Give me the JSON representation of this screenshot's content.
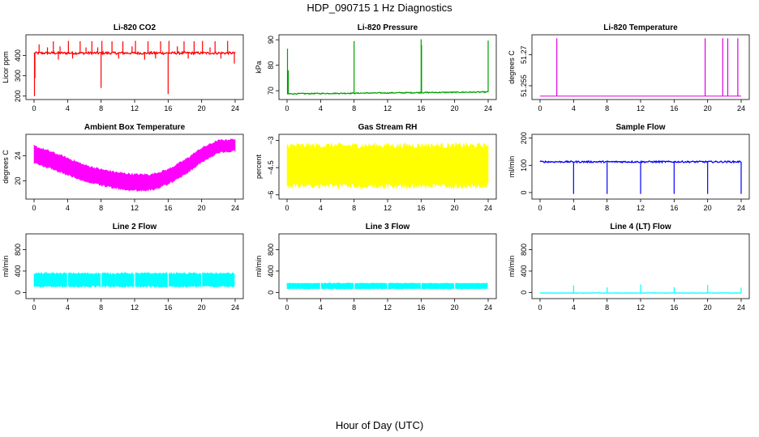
{
  "page": {
    "title": "HDP_090715  1 Hz Diagnostics",
    "x_caption": "Hour of Day (UTC)"
  },
  "chart_data": [
    {
      "type": "line",
      "title": "Li-820 CO2",
      "xlabel": "",
      "ylabel": "Licor ppm",
      "color": "#ff0000",
      "xlim": [
        0,
        24
      ],
      "ylim": [
        195,
        490
      ],
      "x_ticks": [
        0,
        4,
        8,
        12,
        16,
        20,
        24
      ],
      "y_ticks": [
        200,
        300,
        400
      ],
      "series": [
        {
          "baseline": 412,
          "noise": 6,
          "spikes": [
            {
              "x": 0.05,
              "y": 200
            },
            {
              "x": 0.1,
              "y": 290
            },
            {
              "x": 0.6,
              "y": 455
            },
            {
              "x": 1.6,
              "y": 440
            },
            {
              "x": 2.3,
              "y": 470
            },
            {
              "x": 2.9,
              "y": 380
            },
            {
              "x": 3.1,
              "y": 445
            },
            {
              "x": 4.1,
              "y": 472
            },
            {
              "x": 4.6,
              "y": 385
            },
            {
              "x": 5.5,
              "y": 470
            },
            {
              "x": 6.2,
              "y": 440
            },
            {
              "x": 6.9,
              "y": 470
            },
            {
              "x": 7.6,
              "y": 440
            },
            {
              "x": 8.0,
              "y": 240
            },
            {
              "x": 8.1,
              "y": 472
            },
            {
              "x": 9.3,
              "y": 470
            },
            {
              "x": 10.1,
              "y": 385
            },
            {
              "x": 10.6,
              "y": 470
            },
            {
              "x": 11.7,
              "y": 445
            },
            {
              "x": 12.1,
              "y": 472
            },
            {
              "x": 13.2,
              "y": 380
            },
            {
              "x": 13.6,
              "y": 470
            },
            {
              "x": 14.5,
              "y": 385
            },
            {
              "x": 15.1,
              "y": 470
            },
            {
              "x": 16.0,
              "y": 210
            },
            {
              "x": 16.1,
              "y": 472
            },
            {
              "x": 17.1,
              "y": 445
            },
            {
              "x": 17.9,
              "y": 470
            },
            {
              "x": 18.4,
              "y": 385
            },
            {
              "x": 19.1,
              "y": 470
            },
            {
              "x": 20.1,
              "y": 472
            },
            {
              "x": 21.0,
              "y": 440
            },
            {
              "x": 21.6,
              "y": 470
            },
            {
              "x": 22.3,
              "y": 385
            },
            {
              "x": 23.1,
              "y": 472
            },
            {
              "x": 23.9,
              "y": 360
            }
          ]
        }
      ]
    },
    {
      "type": "line",
      "title": "Li-820 Pressure",
      "xlabel": "",
      "ylabel": "kPa",
      "color": "#00a000",
      "xlim": [
        0,
        24
      ],
      "ylim": [
        67.5,
        91
      ],
      "x_ticks": [
        0,
        4,
        8,
        12,
        16,
        20,
        24
      ],
      "y_ticks": [
        70,
        80,
        90
      ],
      "series": [
        {
          "baseline_start": 68.8,
          "baseline_end": 69.5,
          "noise": 0.2,
          "spikes": [
            {
              "x": 0.05,
              "y": 86.5
            },
            {
              "x": 0.15,
              "y": 78
            },
            {
              "x": 8.0,
              "y": 89.5
            },
            {
              "x": 16.0,
              "y": 90.2
            },
            {
              "x": 16.05,
              "y": 88
            },
            {
              "x": 24.0,
              "y": 89.7
            }
          ]
        }
      ]
    },
    {
      "type": "line",
      "title": "Li-820 Temperature",
      "xlabel": "",
      "ylabel": "degrees C",
      "color": "#e000e0",
      "xlim": [
        0,
        24
      ],
      "ylim": [
        51.2495,
        51.2785
      ],
      "x_ticks": [
        0,
        4,
        8,
        12,
        16,
        20,
        24
      ],
      "y_ticks": [
        51.255,
        51.27
      ],
      "series": [
        {
          "baseline": 51.25,
          "noise": 0,
          "spikes": [
            {
              "x": 2.0,
              "y": 51.278
            },
            {
              "x": 19.7,
              "y": 51.278
            },
            {
              "x": 21.8,
              "y": 51.278
            },
            {
              "x": 22.4,
              "y": 51.278
            },
            {
              "x": 23.6,
              "y": 51.278
            }
          ]
        }
      ]
    },
    {
      "type": "area",
      "title": "Ambient Box Temperature",
      "xlabel": "",
      "ylabel": "degrees C",
      "color": "#ff00ff",
      "xlim": [
        0,
        24
      ],
      "ylim": [
        17.5,
        27
      ],
      "x_ticks": [
        0,
        4,
        8,
        12,
        16,
        20,
        24
      ],
      "y_ticks": [
        20,
        24
      ],
      "series": [
        {
          "x": [
            0,
            2,
            4,
            6,
            8,
            10,
            12,
            14,
            16,
            18,
            20,
            22,
            24
          ],
          "lower": [
            22.8,
            22.0,
            21.0,
            20.0,
            19.3,
            18.8,
            18.5,
            18.6,
            19.5,
            21.0,
            23.0,
            24.5,
            24.8
          ],
          "upper": [
            25.5,
            24.6,
            23.6,
            22.5,
            21.8,
            21.3,
            21.0,
            21.0,
            21.8,
            23.3,
            25.2,
            26.4,
            26.6
          ]
        }
      ]
    },
    {
      "type": "area",
      "title": "Gas Stream RH",
      "xlabel": "",
      "ylabel": "percent",
      "color": "#ffff00",
      "xlim": [
        0,
        24
      ],
      "ylim": [
        -6.1,
        -2.8
      ],
      "x_ticks": [
        0,
        4,
        8,
        12,
        16,
        20,
        24
      ],
      "y_ticks": [
        -6.0,
        -4.5,
        -3.0
      ],
      "series": [
        {
          "x": [
            0,
            24
          ],
          "lower": [
            -5.5,
            -5.5
          ],
          "upper": [
            -3.3,
            -3.3
          ]
        }
      ]
    },
    {
      "type": "line",
      "title": "Sample Flow",
      "xlabel": "",
      "ylabel": "ml/min",
      "color": "#0000ff",
      "xlim": [
        0,
        24
      ],
      "ylim": [
        -15,
        205
      ],
      "x_ticks": [
        0,
        4,
        8,
        12,
        16,
        20,
        24
      ],
      "y_ticks": [
        0,
        100,
        200
      ],
      "series": [
        {
          "baseline": 113,
          "noise": 3,
          "spikes": [
            {
              "x": 4.0,
              "y": -5
            },
            {
              "x": 8.0,
              "y": -5
            },
            {
              "x": 12.0,
              "y": -5
            },
            {
              "x": 16.0,
              "y": -5
            },
            {
              "x": 20.0,
              "y": -5
            },
            {
              "x": 24.0,
              "y": -5
            }
          ]
        }
      ]
    },
    {
      "type": "area",
      "title": "Line 2 Flow",
      "xlabel": "",
      "ylabel": "ml/min",
      "color": "#00ffff",
      "xlim": [
        0,
        24
      ],
      "ylim": [
        -70,
        1050
      ],
      "x_ticks": [
        0,
        4,
        8,
        12,
        16,
        20,
        24
      ],
      "y_ticks": [
        0,
        400,
        800
      ],
      "series": [
        {
          "x": [
            0,
            24
          ],
          "lower": [
            110,
            110
          ],
          "upper": [
            355,
            355
          ],
          "gaps": [
            4.0,
            8.0,
            12.0,
            16.0,
            20.0,
            24.0
          ]
        }
      ]
    },
    {
      "type": "area",
      "title": "Line 3 Flow",
      "xlabel": "",
      "ylabel": "ml/min",
      "color": "#00ffff",
      "xlim": [
        0,
        24
      ],
      "ylim": [
        -70,
        1050
      ],
      "x_ticks": [
        0,
        4,
        8,
        12,
        16,
        20,
        24
      ],
      "y_ticks": [
        0,
        400,
        800
      ],
      "series": [
        {
          "x": [
            0,
            24
          ],
          "lower": [
            70,
            70
          ],
          "upper": [
            170,
            170
          ],
          "gaps": [
            4.0,
            8.0,
            12.0,
            16.0,
            20.0,
            24.0
          ]
        }
      ]
    },
    {
      "type": "line",
      "title": "Line 4 (LT) Flow",
      "xlabel": "",
      "ylabel": "ml/min",
      "color": "#00ffff",
      "xlim": [
        0,
        24
      ],
      "ylim": [
        -70,
        1050
      ],
      "x_ticks": [
        0,
        4,
        8,
        12,
        16,
        20,
        24
      ],
      "y_ticks": [
        0,
        400,
        800
      ],
      "series": [
        {
          "baseline": -10,
          "noise": 4,
          "spikes": [
            {
              "x": 4.0,
              "y": 130
            },
            {
              "x": 8.0,
              "y": 95
            },
            {
              "x": 12.0,
              "y": 150
            },
            {
              "x": 16.0,
              "y": 100
            },
            {
              "x": 20.0,
              "y": 140
            },
            {
              "x": 24.0,
              "y": 90
            }
          ]
        }
      ]
    }
  ]
}
